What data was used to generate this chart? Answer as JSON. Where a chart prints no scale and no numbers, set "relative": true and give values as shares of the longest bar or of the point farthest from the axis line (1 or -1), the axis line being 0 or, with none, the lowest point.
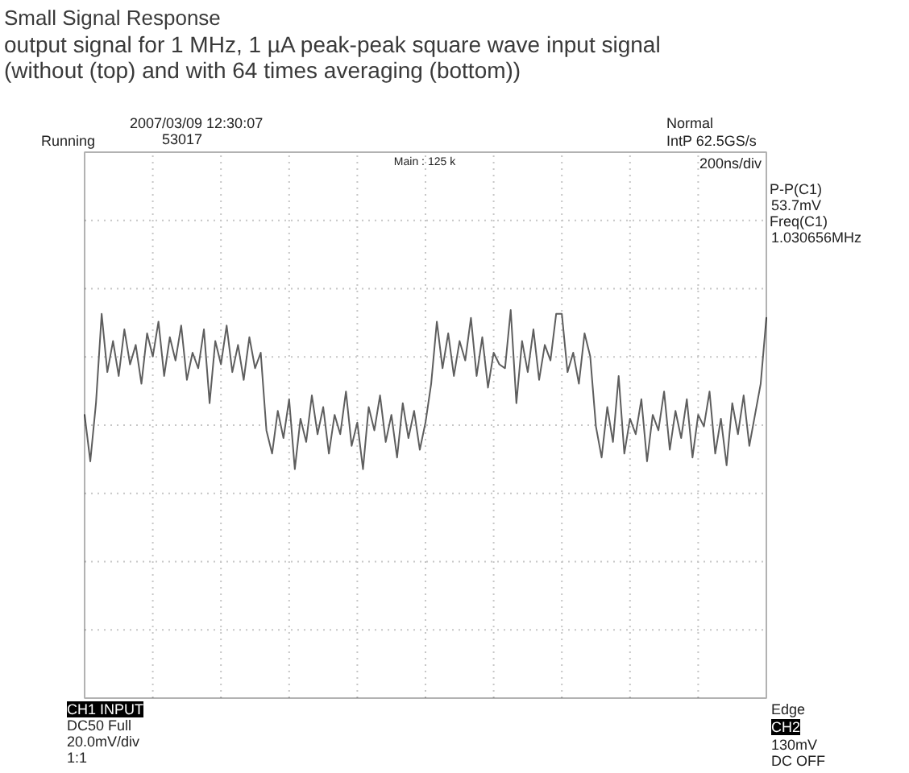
{
  "chart_data": {
    "type": "line",
    "title": "Small Signal Response",
    "subtitle": "output signal for 1 MHz, 1 µA peak-peak square wave input signal (without (top) and with 64 times averaging (bottom))",
    "annotations": [
      "2007/03/09 12:30:07",
      "Running",
      "53017",
      "Normal",
      "IntP 62.5GS/s",
      "Main : 125 k",
      "200ns/div",
      "P-P(C1)",
      "53.7mV",
      "Freq(C1)",
      "1.030656MHz",
      "CH1 INPUT",
      "DC50 Full",
      "20.0mV/div",
      "1:1",
      "Edge",
      "CH2",
      "130mV",
      "DC OFF"
    ],
    "categories": [
      null,
      null,
      null,
      null,
      null,
      null,
      null,
      null,
      null,
      null,
      null,
      null,
      null,
      null,
      null,
      null,
      null,
      null,
      null,
      null,
      null,
      null,
      null,
      null,
      null,
      null,
      null,
      null,
      null,
      null,
      null,
      null,
      null,
      null,
      null,
      null,
      null,
      null,
      null,
      null,
      null,
      null,
      null,
      null,
      null,
      null,
      null,
      null,
      null,
      null,
      null,
      null,
      null,
      null,
      null,
      null,
      null,
      null,
      null,
      null,
      null,
      null,
      null,
      null,
      null,
      null,
      null,
      null,
      null,
      null,
      null,
      null,
      null,
      null,
      null,
      null,
      null,
      null,
      null,
      null,
      null,
      null,
      null,
      null,
      null,
      null,
      null,
      null,
      null,
      null,
      null,
      null,
      null,
      null,
      null,
      null,
      null,
      null,
      null,
      null,
      null,
      null,
      null,
      null,
      null,
      null,
      null,
      null,
      null,
      null,
      null,
      null,
      null,
      null,
      null,
      null,
      null,
      null,
      null,
      null,
      null
    ],
    "values": [
      0.73,
      0.61,
      0.76,
      0.99,
      0.84,
      0.92,
      0.83,
      0.95,
      0.86,
      0.91,
      0.81,
      0.94,
      0.88,
      0.97,
      0.83,
      0.93,
      0.87,
      0.96,
      0.82,
      0.89,
      0.85,
      0.95,
      0.76,
      0.92,
      0.86,
      0.96,
      0.84,
      0.91,
      0.82,
      0.93,
      0.85,
      0.89,
      0.69,
      0.63,
      0.74,
      0.67,
      0.77,
      0.59,
      0.72,
      0.66,
      0.78,
      0.68,
      0.75,
      0.63,
      0.73,
      0.68,
      0.79,
      0.65,
      0.71,
      0.59,
      0.75,
      0.69,
      0.78,
      0.66,
      0.73,
      0.62,
      0.76,
      0.67,
      0.74,
      0.64,
      0.71,
      0.81,
      0.97,
      0.85,
      0.94,
      0.83,
      0.92,
      0.87,
      0.98,
      0.83,
      0.93,
      0.8,
      0.89,
      0.86,
      0.85,
      1.0,
      0.76,
      0.92,
      0.84,
      0.95,
      0.82,
      0.91,
      0.87,
      0.99,
      0.99,
      0.84,
      0.89,
      0.81,
      0.94,
      0.88,
      0.7,
      0.62,
      0.75,
      0.66,
      0.83,
      0.63,
      0.72,
      0.68,
      0.77,
      0.61,
      0.73,
      0.69,
      0.79,
      0.64,
      0.74,
      0.67,
      0.77,
      0.62,
      0.73,
      0.7,
      0.79,
      0.63,
      0.72,
      0.6,
      0.76,
      0.68,
      0.78,
      0.65,
      0.73,
      0.81,
      0.98
    ],
    "color": "#5e5e5e",
    "relative": true,
    "grid": true,
    "tick_labels": false
  }
}
